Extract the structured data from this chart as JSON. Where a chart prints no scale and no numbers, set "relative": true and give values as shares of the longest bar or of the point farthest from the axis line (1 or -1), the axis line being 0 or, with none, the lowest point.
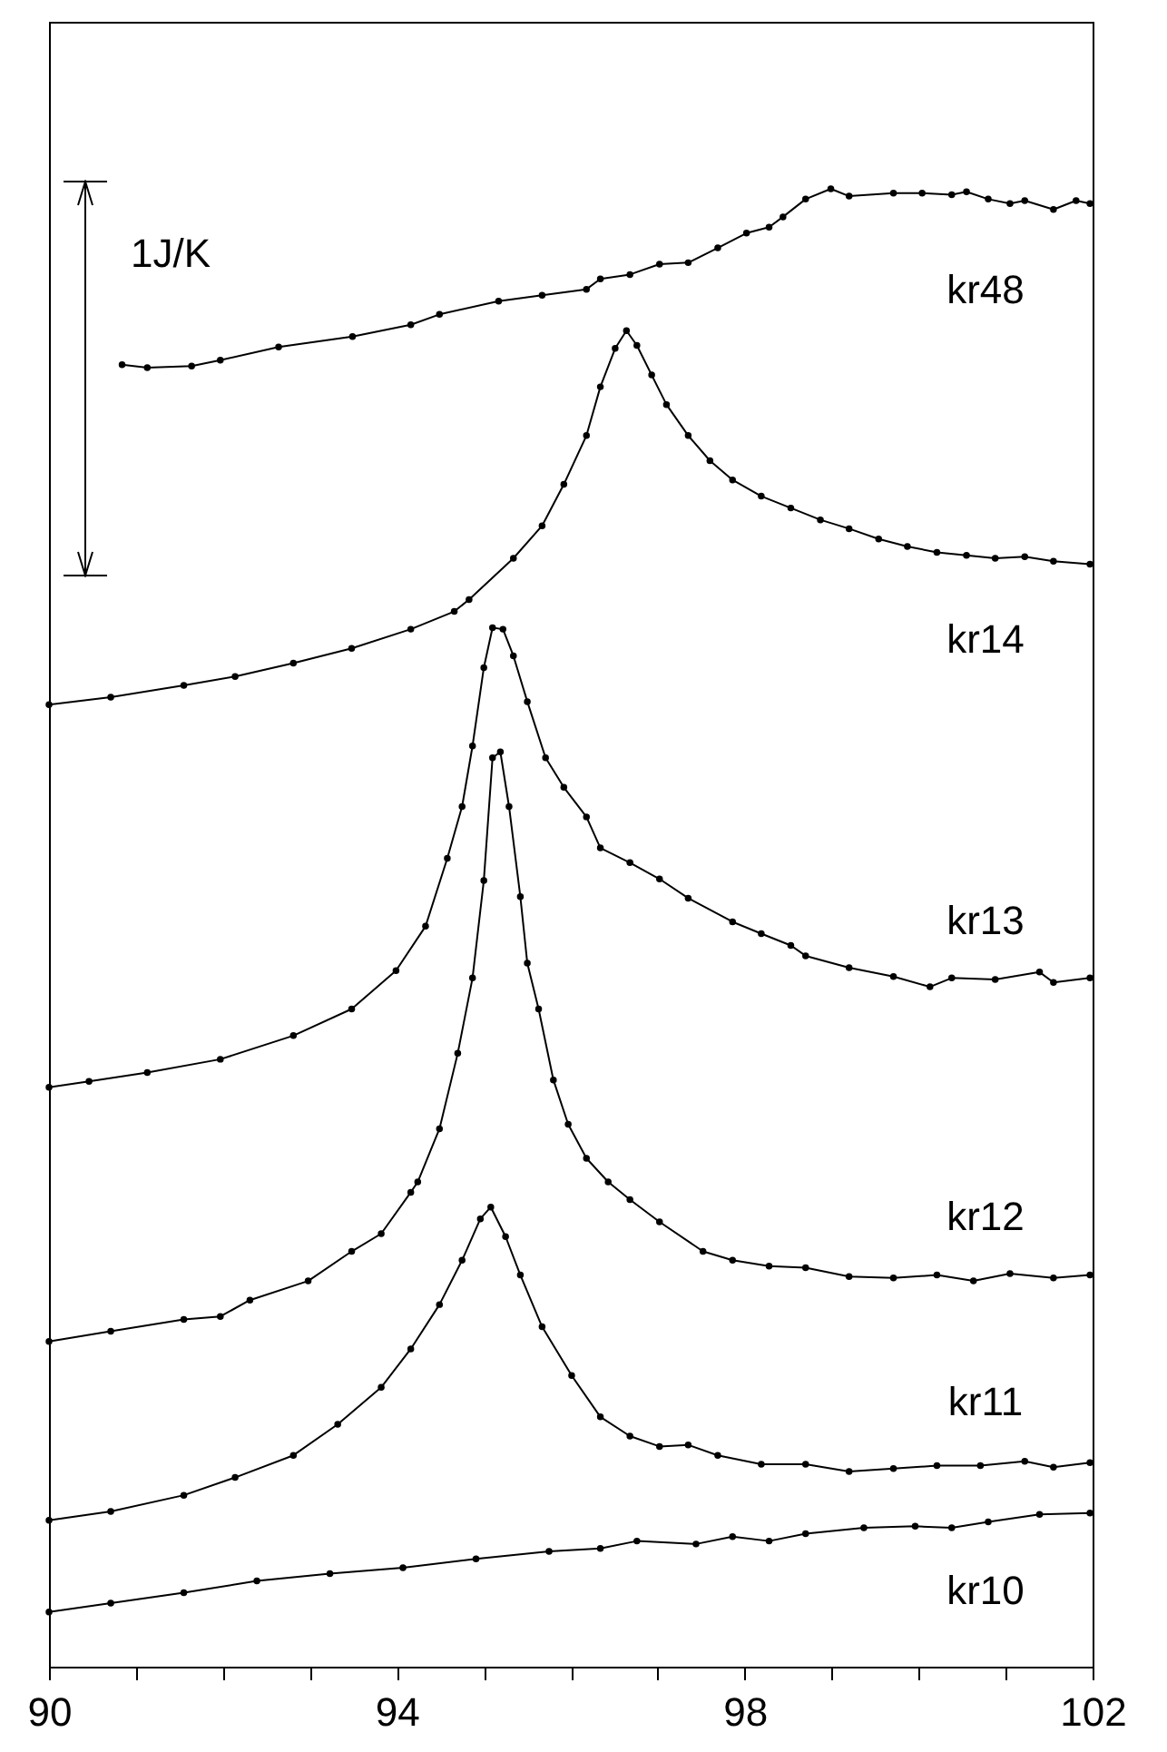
{
  "chart_data": {
    "type": "line",
    "relative": true,
    "marker": "circle",
    "line_style": "solid",
    "grid": false,
    "legend": false,
    "xlim": [
      90,
      102
    ],
    "xticks": [
      90,
      {
        "value": 91,
        "label": null
      },
      {
        "value": 92,
        "label": null
      },
      {
        "value": 93,
        "label": null
      },
      94,
      {
        "value": 95,
        "label": null
      },
      {
        "value": 96,
        "label": null
      },
      {
        "value": 97,
        "label": null
      },
      98,
      {
        "value": 99,
        "label": null
      },
      {
        "value": 100,
        "label": null
      },
      {
        "value": 101,
        "label": null
      },
      102
    ],
    "annotations": [
      "1J/K"
    ],
    "series": [
      {
        "name": "kr48",
        "color": "#000000",
        "x": [
          90.84,
          91.13,
          91.64,
          91.97,
          92.64,
          93.49,
          94.16,
          94.49,
          95.17,
          95.67,
          96.18,
          96.34,
          96.68,
          97.02,
          97.35,
          97.69,
          98.02,
          98.28,
          98.44,
          98.7,
          98.99,
          99.2,
          99.71,
          100.04,
          100.38,
          100.55,
          100.8,
          101.05,
          101.22,
          101.55,
          101.81,
          101.97
        ],
        "values": [
          0.881,
          0.879,
          0.88,
          0.884,
          0.893,
          0.9,
          0.908,
          0.915,
          0.924,
          0.928,
          0.932,
          0.939,
          0.942,
          0.949,
          0.95,
          0.96,
          0.97,
          0.974,
          0.981,
          0.993,
          1,
          0.995,
          0.997,
          0.997,
          0.996,
          0.998,
          0.993,
          0.99,
          0.992,
          0.986,
          0.992,
          0.99
        ]
      },
      {
        "name": "kr14",
        "color": "#000000",
        "x": [
          90.0,
          90.71,
          91.55,
          92.14,
          92.81,
          93.48,
          94.16,
          94.66,
          94.83,
          95.34,
          95.67,
          95.92,
          96.18,
          96.34,
          96.51,
          96.64,
          96.76,
          96.93,
          97.1,
          97.35,
          97.6,
          97.86,
          98.19,
          98.53,
          98.87,
          99.2,
          99.54,
          99.87,
          100.21,
          100.55,
          100.88,
          101.22,
          101.55,
          101.97
        ],
        "values": [
          0.651,
          0.656,
          0.664,
          0.67,
          0.679,
          0.689,
          0.702,
          0.714,
          0.722,
          0.75,
          0.772,
          0.8,
          0.833,
          0.866,
          0.892,
          0.904,
          0.894,
          0.874,
          0.854,
          0.833,
          0.816,
          0.803,
          0.792,
          0.784,
          0.776,
          0.77,
          0.763,
          0.758,
          0.754,
          0.752,
          0.75,
          0.751,
          0.748,
          0.746
        ]
      },
      {
        "name": "kr13",
        "color": "#000000",
        "x": [
          90.0,
          90.46,
          91.13,
          91.97,
          92.81,
          93.48,
          93.99,
          94.33,
          94.58,
          94.75,
          94.87,
          95.0,
          95.1,
          95.22,
          95.34,
          95.5,
          95.71,
          95.92,
          96.18,
          96.34,
          96.68,
          97.02,
          97.35,
          97.86,
          98.19,
          98.53,
          98.7,
          99.2,
          99.71,
          100.13,
          100.38,
          100.88,
          101.39,
          101.55,
          101.97
        ],
        "values": [
          0.392,
          0.396,
          0.402,
          0.411,
          0.427,
          0.445,
          0.471,
          0.501,
          0.547,
          0.582,
          0.623,
          0.676,
          0.703,
          0.702,
          0.684,
          0.653,
          0.615,
          0.595,
          0.575,
          0.554,
          0.544,
          0.533,
          0.52,
          0.504,
          0.496,
          0.488,
          0.481,
          0.473,
          0.467,
          0.46,
          0.466,
          0.465,
          0.47,
          0.463,
          0.466
        ]
      },
      {
        "name": "kr12",
        "color": "#000000",
        "x": [
          90.0,
          90.71,
          91.55,
          91.97,
          92.31,
          92.98,
          93.48,
          93.82,
          94.16,
          94.24,
          94.49,
          94.7,
          94.87,
          95.0,
          95.1,
          95.19,
          95.29,
          95.42,
          95.5,
          95.63,
          95.8,
          95.97,
          96.18,
          96.43,
          96.68,
          97.02,
          97.52,
          97.86,
          98.28,
          98.7,
          99.2,
          99.71,
          100.21,
          100.63,
          101.05,
          101.55,
          101.97
        ],
        "values": [
          0.22,
          0.227,
          0.235,
          0.237,
          0.248,
          0.261,
          0.281,
          0.293,
          0.321,
          0.328,
          0.364,
          0.415,
          0.466,
          0.532,
          0.615,
          0.619,
          0.582,
          0.521,
          0.476,
          0.445,
          0.397,
          0.367,
          0.344,
          0.328,
          0.316,
          0.301,
          0.281,
          0.275,
          0.271,
          0.27,
          0.264,
          0.263,
          0.265,
          0.261,
          0.266,
          0.263,
          0.265
        ]
      },
      {
        "name": "kr11",
        "color": "#000000",
        "x": [
          90.0,
          90.71,
          91.55,
          92.14,
          92.81,
          93.32,
          93.82,
          94.16,
          94.49,
          94.75,
          94.96,
          95.08,
          95.25,
          95.42,
          95.67,
          96.01,
          96.34,
          96.68,
          97.02,
          97.35,
          97.69,
          98.19,
          98.7,
          99.2,
          99.71,
          100.21,
          100.71,
          101.22,
          101.55,
          101.97
        ],
        "values": [
          0.099,
          0.105,
          0.116,
          0.128,
          0.143,
          0.164,
          0.189,
          0.215,
          0.245,
          0.275,
          0.303,
          0.311,
          0.291,
          0.265,
          0.23,
          0.197,
          0.169,
          0.156,
          0.149,
          0.15,
          0.143,
          0.137,
          0.137,
          0.132,
          0.134,
          0.136,
          0.136,
          0.139,
          0.135,
          0.138
        ]
      },
      {
        "name": "kr10",
        "color": "#000000",
        "x": [
          90.0,
          90.71,
          91.55,
          92.39,
          93.23,
          94.07,
          94.91,
          95.75,
          96.34,
          96.76,
          97.44,
          97.86,
          98.28,
          98.7,
          99.37,
          99.96,
          100.38,
          100.8,
          101.39,
          101.97
        ],
        "values": [
          0.037,
          0.043,
          0.05,
          0.058,
          0.063,
          0.067,
          0.073,
          0.078,
          0.08,
          0.085,
          0.083,
          0.088,
          0.085,
          0.09,
          0.094,
          0.095,
          0.094,
          0.098,
          0.103,
          0.104
        ]
      }
    ]
  }
}
